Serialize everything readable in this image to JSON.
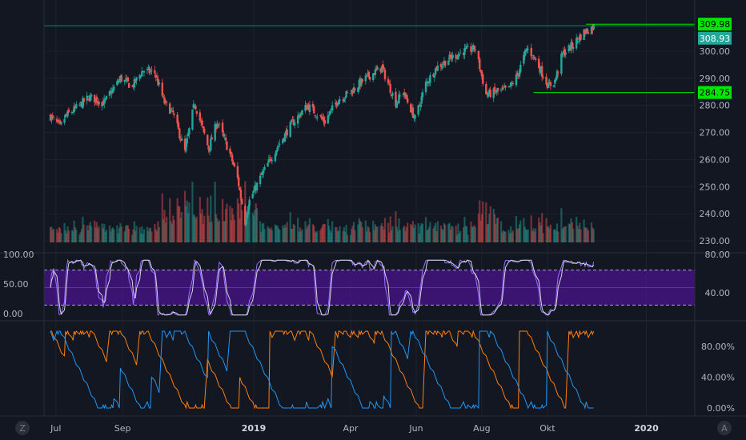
{
  "chart_data": [
    {
      "type": "candlestick",
      "pane": "price",
      "ylim": [
        225,
        315
      ],
      "yticks": [
        "230.00",
        "240.00",
        "250.00",
        "260.00",
        "270.00",
        "280.00",
        "290.00",
        "300.00"
      ],
      "grid": true,
      "price_path": [
        [
          "2018-06-26",
          276
        ],
        [
          "2018-07-05",
          272
        ],
        [
          "2018-07-10",
          276
        ],
        [
          "2018-07-20",
          279
        ],
        [
          "2018-08-01",
          283
        ],
        [
          "2018-08-15",
          281
        ],
        [
          "2018-08-30",
          290
        ],
        [
          "2018-09-10",
          287
        ],
        [
          "2018-09-20",
          293
        ],
        [
          "2018-10-01",
          292
        ],
        [
          "2018-10-10",
          281
        ],
        [
          "2018-10-18",
          277
        ],
        [
          "2018-10-29",
          263
        ],
        [
          "2018-11-07",
          281
        ],
        [
          "2018-11-20",
          264
        ],
        [
          "2018-11-28",
          274
        ],
        [
          "2018-12-10",
          262
        ],
        [
          "2018-12-17",
          253
        ],
        [
          "2018-12-24",
          237
        ],
        [
          "2018-12-27",
          244
        ],
        [
          "2019-01-08",
          254
        ],
        [
          "2019-01-22",
          264
        ],
        [
          "2019-02-05",
          273
        ],
        [
          "2019-02-20",
          280
        ],
        [
          "2019-03-08",
          274
        ],
        [
          "2019-03-20",
          282
        ],
        [
          "2019-04-01",
          285
        ],
        [
          "2019-04-15",
          290
        ],
        [
          "2019-04-30",
          294
        ],
        [
          "2019-05-13",
          281
        ],
        [
          "2019-05-20",
          285
        ],
        [
          "2019-05-31",
          275
        ],
        [
          "2019-06-10",
          288
        ],
        [
          "2019-06-20",
          294
        ],
        [
          "2019-07-01",
          297
        ],
        [
          "2019-07-15",
          300
        ],
        [
          "2019-07-26",
          301
        ],
        [
          "2019-08-05",
          284
        ],
        [
          "2019-08-15",
          285
        ],
        [
          "2019-08-26",
          286
        ],
        [
          "2019-09-03",
          291
        ],
        [
          "2019-09-12",
          301
        ],
        [
          "2019-09-20",
          297
        ],
        [
          "2019-10-02",
          287
        ],
        [
          "2019-10-08",
          289
        ],
        [
          "2019-10-15",
          299
        ],
        [
          "2019-10-24",
          302
        ],
        [
          "2019-11-04",
          307
        ],
        [
          "2019-11-13",
          309
        ]
      ],
      "volume_range": [
        230,
        250
      ],
      "x_start": "2018-06-20",
      "x_end": "2020-02-15",
      "xticks": [
        {
          "date": "2018-07-01",
          "label": "Jul",
          "bold": false
        },
        {
          "date": "2018-09-01",
          "label": "Sep",
          "bold": false
        },
        {
          "date": "2019-01-01",
          "label": "2019",
          "bold": true
        },
        {
          "date": "2019-04-01",
          "label": "Apr",
          "bold": false
        },
        {
          "date": "2019-06-01",
          "label": "Jun",
          "bold": false
        },
        {
          "date": "2019-08-01",
          "label": "Aug",
          "bold": false
        },
        {
          "date": "2019-10-01",
          "label": "Okt",
          "bold": false
        },
        {
          "date": "2020-01-01",
          "label": "2020",
          "bold": true
        }
      ],
      "levels": [
        {
          "value": 309.98,
          "label": "309.98",
          "color": "#00e600",
          "from": "2019-11-06"
        },
        {
          "value": 284.75,
          "label": "284.75",
          "color": "#00e600",
          "from": "2019-09-18"
        }
      ],
      "last_price": {
        "value": 308.93,
        "label": "308.93",
        "color": "#26a69a"
      },
      "colors": {
        "up": "#26a69a",
        "down": "#ef5350"
      }
    },
    {
      "type": "line",
      "pane": "stoch_rsi",
      "ylim": [
        0,
        100
      ],
      "yticks_left": [
        "100.00",
        "50.00",
        "0.00"
      ],
      "yticks_right": [
        "80.00",
        "40.00"
      ],
      "band": [
        20,
        80
      ],
      "band_color": "#4a148c",
      "series": [
        {
          "color": "#9c6bff",
          "lag": 0
        },
        {
          "color": "#cfd8dc",
          "lag": 2
        }
      ]
    },
    {
      "type": "line",
      "pane": "aroon",
      "ylim": [
        0,
        100
      ],
      "yticks": [
        "80.00%",
        "40.00%",
        "0.00%"
      ],
      "series": [
        {
          "color": "#ff7f0e"
        },
        {
          "color": "#2196f3"
        }
      ]
    }
  ],
  "toolbar": {
    "left_icon": "Z",
    "right_icon": "A"
  }
}
